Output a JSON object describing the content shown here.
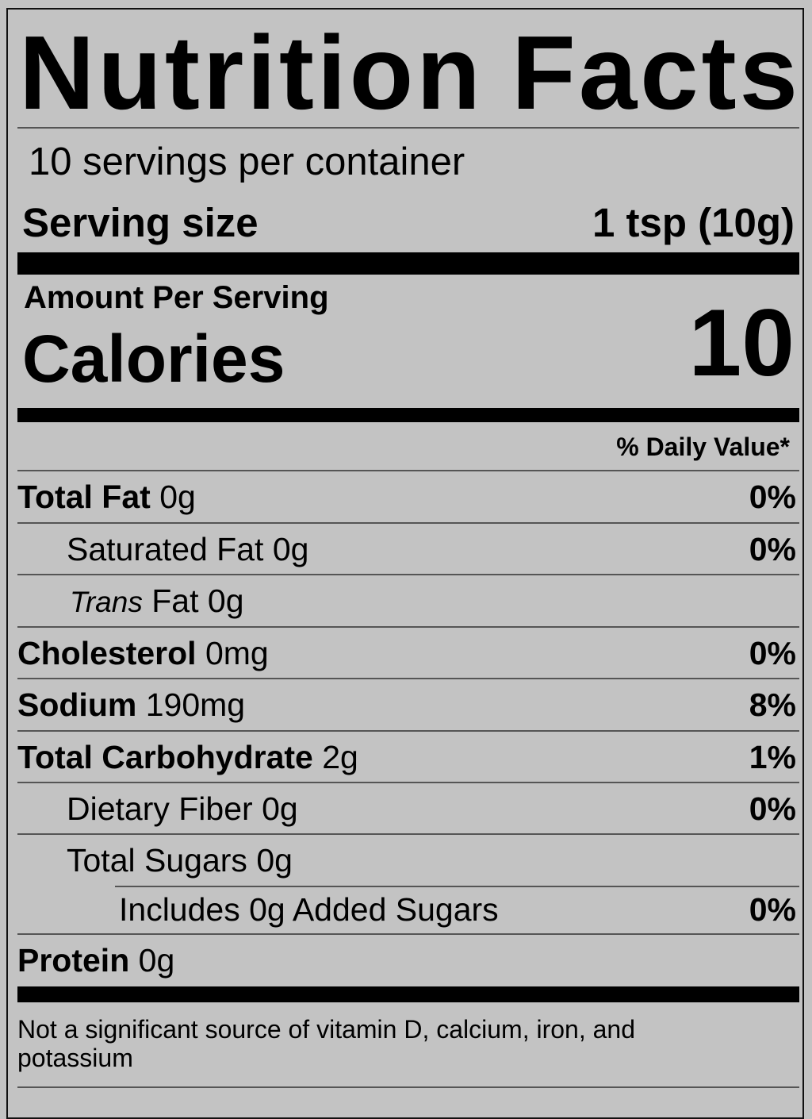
{
  "title": [
    "Nutrition",
    "Facts"
  ],
  "servings_per_container": "10 servings per container",
  "serving_size": {
    "label": "Serving size",
    "value": "1 tsp (10g)"
  },
  "amount_per_serving": "Amount Per Serving",
  "calories": {
    "label": "Calories",
    "value": "10"
  },
  "daily_value_header": "% Daily Value*",
  "nutrients": [
    {
      "name": "Total Fat",
      "amount": "0g",
      "dv": "0%"
    },
    {
      "name": "Saturated Fat",
      "amount": "0g",
      "dv": "0%"
    },
    {
      "name": "Trans",
      "name_suffix": "Fat",
      "amount": "0g",
      "dv": ""
    },
    {
      "name": "Cholesterol",
      "amount": "0mg",
      "dv": "0%"
    },
    {
      "name": "Sodium",
      "amount": "190mg",
      "dv": "8%"
    },
    {
      "name": "Total Carbohydrate",
      "amount": "2g",
      "dv": "1%"
    },
    {
      "name": "Dietary Fiber",
      "amount": "0g",
      "dv": "0%"
    },
    {
      "name": "Total Sugars",
      "amount": "0g",
      "dv": ""
    },
    {
      "name": "Includes 0g Added Sugars",
      "amount": "",
      "dv": "0%"
    },
    {
      "name": "Protein",
      "amount": "0g",
      "dv": ""
    }
  ],
  "footnote": "Not a significant source of vitamin D, calcium, iron, and potassium"
}
